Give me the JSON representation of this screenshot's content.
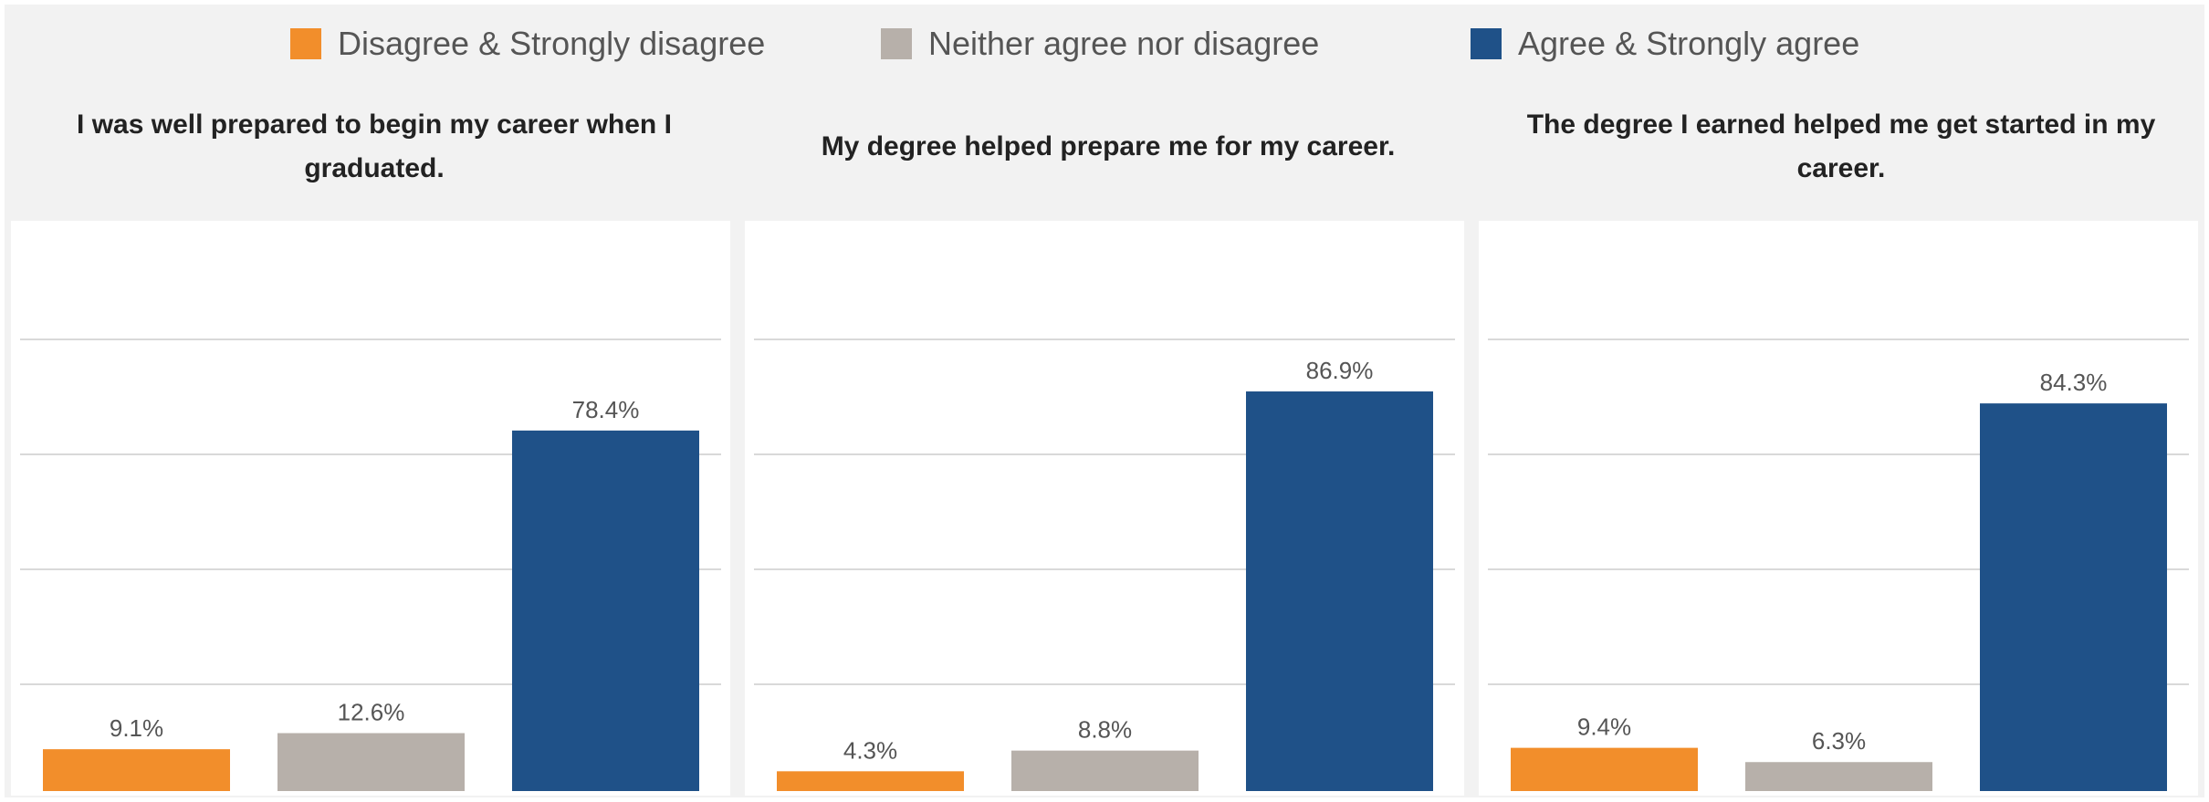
{
  "legend": [
    {
      "label": "Disagree & Strongly disagree",
      "color": "#f28e2b"
    },
    {
      "label": "Neither agree nor disagree",
      "color": "#b7b0aa"
    },
    {
      "label": "Agree & Strongly agree",
      "color": "#1f5188"
    }
  ],
  "panels": [
    {
      "title": "I was well prepared to begin my career when I graduated."
    },
    {
      "title": "My degree helped prepare me for my career."
    },
    {
      "title": "The degree I earned helped me get started in my career."
    }
  ],
  "chart_data": [
    {
      "type": "bar",
      "title": "I was well prepared to begin my career when I graduated.",
      "categories": [
        "Disagree & Strongly disagree",
        "Neither agree nor disagree",
        "Agree & Strongly agree"
      ],
      "values": [
        9.1,
        12.6,
        78.4
      ],
      "value_labels": [
        "9.1%",
        "12.6%",
        "78.4%"
      ],
      "colors": [
        "#f28e2b",
        "#b7b0aa",
        "#1f5188"
      ],
      "ylim": [
        0,
        100
      ],
      "grid": true
    },
    {
      "type": "bar",
      "title": "My degree helped prepare me for my career.",
      "categories": [
        "Disagree & Strongly disagree",
        "Neither agree nor disagree",
        "Agree & Strongly agree"
      ],
      "values": [
        4.3,
        8.8,
        86.9
      ],
      "value_labels": [
        "4.3%",
        "8.8%",
        "86.9%"
      ],
      "colors": [
        "#f28e2b",
        "#b7b0aa",
        "#1f5188"
      ],
      "ylim": [
        0,
        100
      ],
      "grid": true
    },
    {
      "type": "bar",
      "title": "The degree I earned helped me get started in my career.",
      "categories": [
        "Disagree & Strongly disagree",
        "Neither agree nor disagree",
        "Agree & Strongly agree"
      ],
      "values": [
        9.4,
        6.3,
        84.3
      ],
      "value_labels": [
        "9.4%",
        "6.3%",
        "84.3%"
      ],
      "colors": [
        "#f28e2b",
        "#b7b0aa",
        "#1f5188"
      ],
      "ylim": [
        0,
        100
      ],
      "grid": true
    }
  ]
}
